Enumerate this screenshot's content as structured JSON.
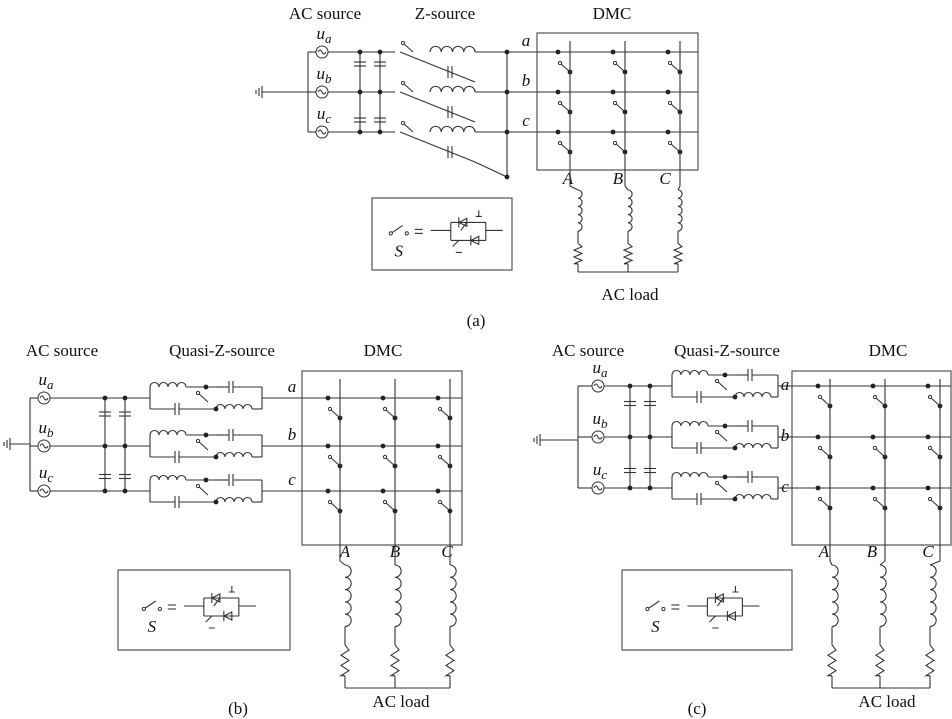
{
  "panels": [
    {
      "caption": "(a)",
      "source_label": "AC source",
      "network_label": "Z-source",
      "converter_label": "DMC",
      "load_label": "AC load",
      "sources": [
        {
          "symbol": "u",
          "subscript": "a"
        },
        {
          "symbol": "u",
          "subscript": "b"
        },
        {
          "symbol": "u",
          "subscript": "c"
        }
      ],
      "input_phases": [
        "a",
        "b",
        "c"
      ],
      "output_phases": [
        "A",
        "B",
        "C"
      ],
      "switch_symbol": "S"
    },
    {
      "caption": "(b)",
      "source_label": "AC source",
      "network_label": "Quasi-Z-source",
      "converter_label": "DMC",
      "load_label": "AC load",
      "sources": [
        {
          "symbol": "u",
          "subscript": "a"
        },
        {
          "symbol": "u",
          "subscript": "b"
        },
        {
          "symbol": "u",
          "subscript": "c"
        }
      ],
      "input_phases": [
        "a",
        "b",
        "c"
      ],
      "output_phases": [
        "A",
        "B",
        "C"
      ],
      "switch_symbol": "S"
    },
    {
      "caption": "(c)",
      "source_label": "AC source",
      "network_label": "Quasi-Z-source",
      "converter_label": "DMC",
      "load_label": "AC load",
      "sources": [
        {
          "symbol": "u",
          "subscript": "a"
        },
        {
          "symbol": "u",
          "subscript": "b"
        },
        {
          "symbol": "u",
          "subscript": "c"
        }
      ],
      "input_phases": [
        "a",
        "b",
        "c"
      ],
      "output_phases": [
        "A",
        "B",
        "C"
      ],
      "switch_symbol": "S"
    }
  ]
}
